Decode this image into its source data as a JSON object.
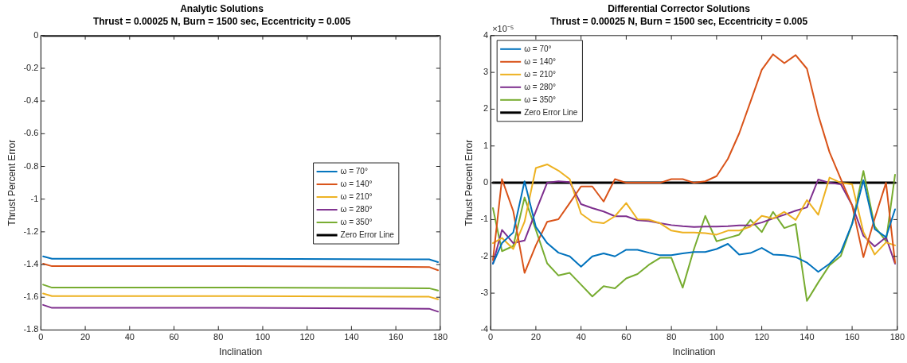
{
  "chart_data": [
    {
      "type": "line",
      "title": "Analytic Solutions",
      "subtitle": "Thrust = 0.00025 N, Burn = 1500 sec, Eccentricity = 0.005",
      "xlabel": "Inclination",
      "ylabel": "Thrust Percent Error",
      "xlim": [
        0,
        180
      ],
      "xticks": [
        0,
        20,
        40,
        60,
        80,
        100,
        120,
        140,
        160,
        180
      ],
      "ylim": [
        -1.8,
        0
      ],
      "yticks": [
        -1.8,
        -1.6,
        -1.4,
        -1.2,
        -1,
        -0.8,
        -0.6,
        -0.4,
        -0.2,
        0
      ],
      "grid": false,
      "legend": "right",
      "series": [
        {
          "name": "ω = 70°",
          "color": "#0072bd",
          "x": [
            1,
            5,
            90,
            175,
            179
          ],
          "values": [
            -1.35,
            -1.365,
            -1.365,
            -1.368,
            -1.385
          ]
        },
        {
          "name": "ω = 140°",
          "color": "#d95319",
          "x": [
            1,
            5,
            90,
            175,
            179
          ],
          "values": [
            -1.395,
            -1.41,
            -1.41,
            -1.415,
            -1.435
          ]
        },
        {
          "name": "ω = 210°",
          "color": "#edb120",
          "x": [
            1,
            5,
            90,
            175,
            179
          ],
          "values": [
            -1.577,
            -1.593,
            -1.593,
            -1.597,
            -1.612
          ]
        },
        {
          "name": "ω = 280°",
          "color": "#7e2f8e",
          "x": [
            1,
            5,
            90,
            175,
            179
          ],
          "values": [
            -1.647,
            -1.665,
            -1.665,
            -1.67,
            -1.688
          ]
        },
        {
          "name": "ω = 350°",
          "color": "#77ac30",
          "x": [
            1,
            5,
            90,
            175,
            179
          ],
          "values": [
            -1.523,
            -1.541,
            -1.541,
            -1.545,
            -1.559
          ]
        },
        {
          "name": "Zero Error Line",
          "color": "#000000",
          "x": [
            1,
            179
          ],
          "values": [
            0,
            0
          ]
        }
      ]
    },
    {
      "type": "line",
      "title": "Differential Corrector Solutions",
      "subtitle": "Thrust = 0.00025 N, Burn = 1500 sec, Eccentricity = 0.005",
      "xlabel": "Inclination",
      "ylabel": "Thrust Percent Error",
      "annotations": [
        "×10⁻⁵"
      ],
      "xlim": [
        0,
        180
      ],
      "xticks": [
        0,
        20,
        40,
        60,
        80,
        100,
        120,
        140,
        160,
        180
      ],
      "ylim": [
        -4,
        4
      ],
      "yticks": [
        -4,
        -3,
        -2,
        -1,
        0,
        1,
        2,
        3,
        4
      ],
      "grid": false,
      "legend": "top left",
      "x": [
        1,
        5,
        10,
        15,
        20,
        25,
        30,
        35,
        40,
        45,
        50,
        55,
        60,
        65,
        70,
        75,
        80,
        85,
        90,
        95,
        100,
        105,
        110,
        115,
        120,
        125,
        130,
        135,
        140,
        145,
        150,
        155,
        160,
        165,
        170,
        175,
        179
      ],
      "series": [
        {
          "name": "ω = 70°",
          "color": "#0072bd",
          "values": [
            -2.2,
            -1.64,
            -1.35,
            0.04,
            -1.2,
            -1.64,
            -1.9,
            -2.0,
            -2.28,
            -2.0,
            -1.92,
            -2.0,
            -1.82,
            -1.82,
            -1.9,
            -1.97,
            -1.97,
            -1.92,
            -1.88,
            -1.88,
            -1.8,
            -1.66,
            -1.95,
            -1.91,
            -1.77,
            -1.95,
            -1.97,
            -2.02,
            -2.17,
            -2.42,
            -2.2,
            -1.88,
            -1.12,
            0.07,
            -1.26,
            -1.48,
            -0.72
          ]
        },
        {
          "name": "ω = 140°",
          "color": "#d95319",
          "values": [
            -2.1,
            0.1,
            -0.77,
            -2.45,
            -1.7,
            -1.06,
            -0.99,
            -0.55,
            -0.1,
            -0.1,
            -0.51,
            0.1,
            0,
            0,
            0,
            0,
            0.1,
            0.1,
            0,
            0.04,
            0.18,
            0.65,
            1.34,
            2.2,
            3.07,
            3.49,
            3.25,
            3.47,
            3.1,
            1.84,
            0.83,
            0.1,
            -0.61,
            -2.02,
            -0.97,
            0,
            -2.17
          ]
        },
        {
          "name": "ω = 210°",
          "color": "#edb120",
          "values": [
            -1.64,
            -1.5,
            -1.8,
            -1.06,
            0.4,
            0.5,
            0.33,
            0.1,
            -0.84,
            -1.06,
            -1.1,
            -0.91,
            -0.55,
            -0.99,
            -1.0,
            -1.1,
            -1.3,
            -1.35,
            -1.35,
            -1.37,
            -1.41,
            -1.3,
            -1.3,
            -1.19,
            -0.9,
            -0.97,
            -0.79,
            -1.01,
            -0.47,
            -0.87,
            0.14,
            0,
            -0.04,
            -1.34,
            -1.95,
            -1.62,
            -1.7
          ]
        },
        {
          "name": "ω = 280°",
          "color": "#7e2f8e",
          "values": [
            -2.2,
            -1.28,
            -1.64,
            -1.57,
            -0.77,
            0,
            0.04,
            0.02,
            -0.58,
            -0.69,
            -0.78,
            -0.91,
            -0.91,
            -1.02,
            -1.04,
            -1.1,
            -1.15,
            -1.18,
            -1.2,
            -1.19,
            -1.19,
            -1.18,
            -1.16,
            -1.16,
            -1.08,
            -0.97,
            -0.87,
            -0.76,
            -0.67,
            0.09,
            0,
            -0.04,
            -0.61,
            -1.44,
            -1.73,
            -1.48,
            -2.2
          ]
        },
        {
          "name": "ω = 350°",
          "color": "#77ac30",
          "values": [
            -0.69,
            -1.86,
            -1.72,
            -0.4,
            -1.28,
            -2.19,
            -2.52,
            -2.45,
            -2.77,
            -3.09,
            -2.81,
            -2.87,
            -2.6,
            -2.48,
            -2.23,
            -2.04,
            -2.04,
            -2.85,
            -1.8,
            -0.9,
            -1.59,
            -1.5,
            -1.41,
            -1.01,
            -1.34,
            -0.79,
            -1.23,
            -1.12,
            -3.21,
            -2.71,
            -2.24,
            -1.99,
            -1.12,
            0.32,
            -1.19,
            -1.59,
            0.22
          ]
        },
        {
          "name": "Zero Error Line",
          "color": "#000000",
          "x": [
            1,
            179
          ],
          "values": [
            0,
            0
          ]
        }
      ]
    }
  ]
}
